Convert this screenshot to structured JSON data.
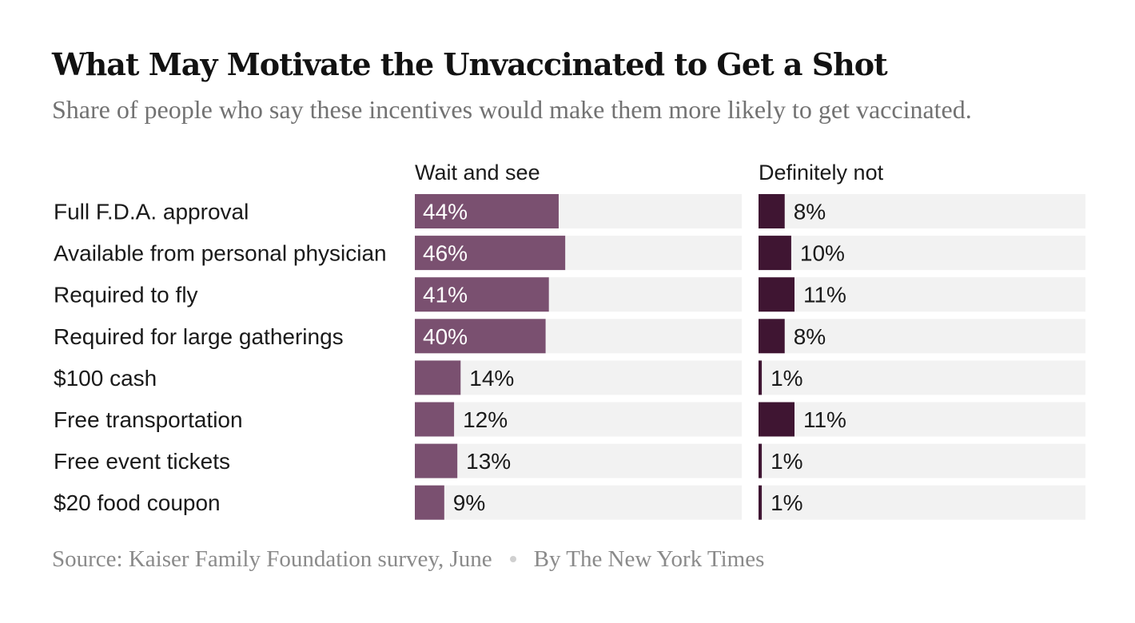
{
  "title": "What May Motivate the Unvaccinated to Get a Shot",
  "subtitle": "Share of people who say these incentives would make them more likely to get vaccinated.",
  "footer": {
    "source": "Source: Kaiser Family Foundation survey, June",
    "credit": "By The New York Times"
  },
  "colors": {
    "wait_and_see": "#7a5070",
    "definitely_not": "#3f1532",
    "track": "#f2f2f2",
    "label_text": "#1a1a1a",
    "inside_text": "#ffffff"
  },
  "chart_data": {
    "type": "bar",
    "orientation": "horizontal",
    "title": "What May Motivate the Unvaccinated to Get a Shot",
    "subtitle": "Share of people who say these incentives would make them more likely to get vaccinated.",
    "categories": [
      "Full F.D.A. approval",
      "Available from personal physician",
      "Required to fly",
      "Required for large gatherings",
      "$100 cash",
      "Free transportation",
      "Free event tickets",
      "$20 food coupon"
    ],
    "series": [
      {
        "name": "Wait and see",
        "values": [
          44,
          46,
          41,
          40,
          14,
          12,
          13,
          9
        ],
        "labels": [
          "44%",
          "46%",
          "41%",
          "40%",
          "14%",
          "12%",
          "13%",
          "9%"
        ]
      },
      {
        "name": "Definitely not",
        "values": [
          8,
          10,
          11,
          8,
          1,
          11,
          1,
          1
        ],
        "labels": [
          "8%",
          "10%",
          "11%",
          "8%",
          "1%",
          "11%",
          "1%",
          "1%"
        ]
      }
    ],
    "xlim": [
      0,
      100
    ],
    "unit": "%"
  }
}
